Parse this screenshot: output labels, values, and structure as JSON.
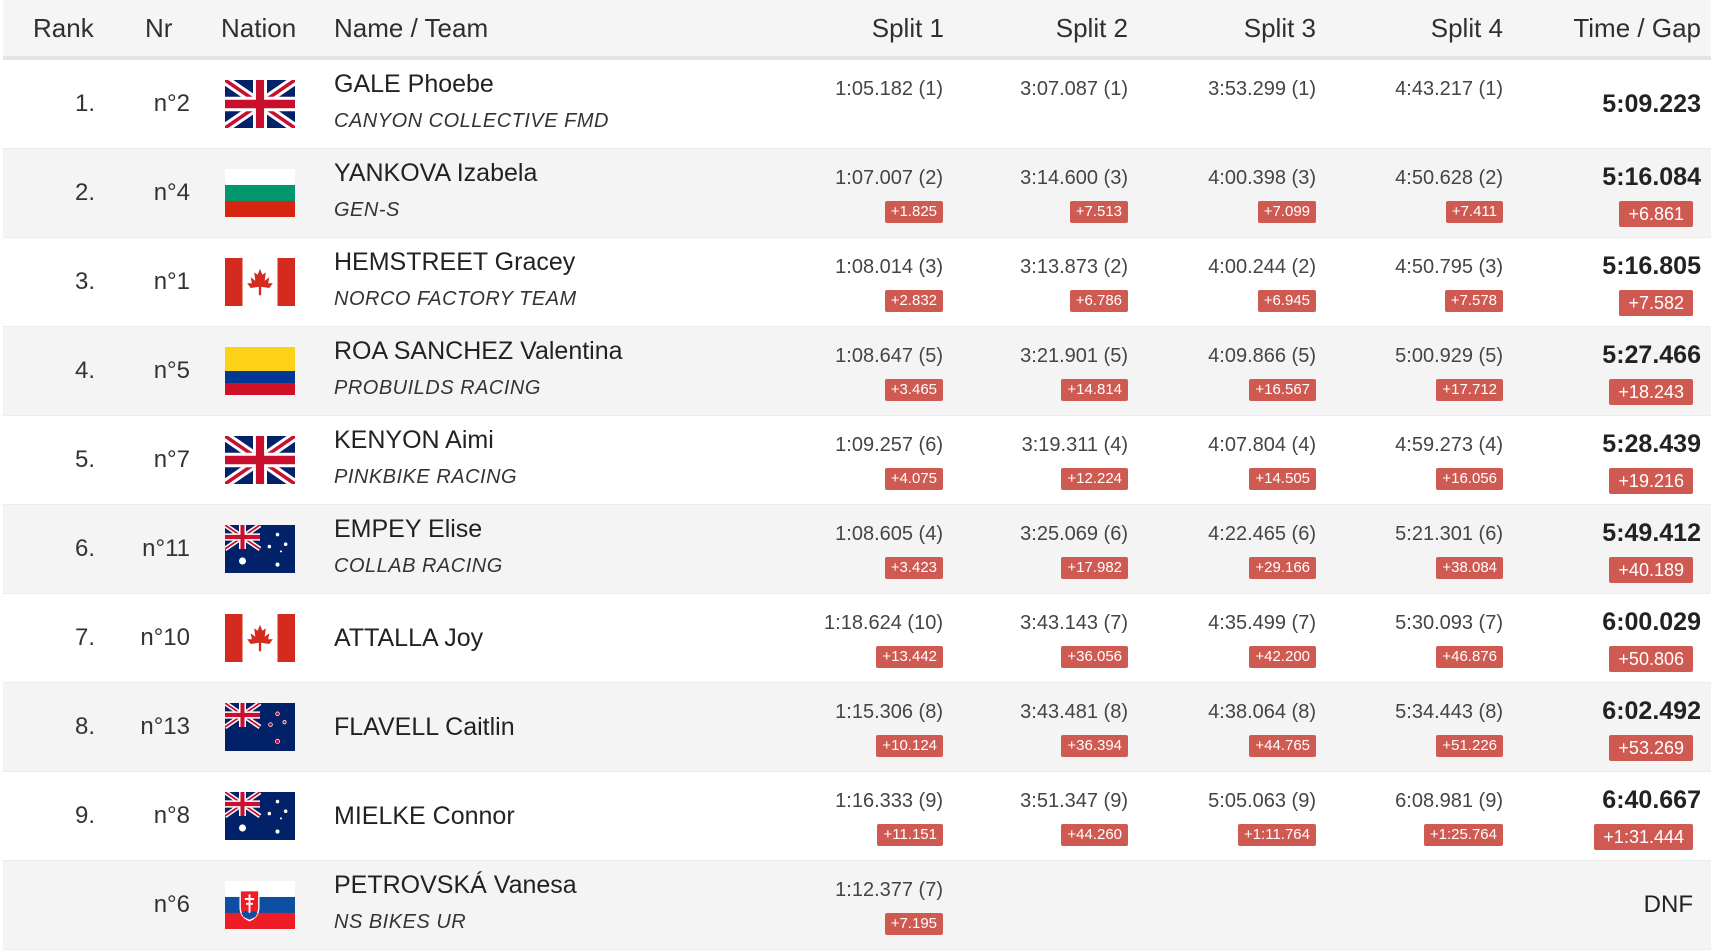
{
  "headers": {
    "rank": "Rank",
    "nr": "Nr",
    "nation": "Nation",
    "name": "Name / Team",
    "split1": "Split 1",
    "split2": "Split 2",
    "split3": "Split 3",
    "split4": "Split 4",
    "time": "Time / Gap"
  },
  "colors": {
    "gap_badge": "#cf5a52",
    "alt_row": "#f4f4f4"
  },
  "rows": [
    {
      "rank": "1.",
      "nr": "n°2",
      "flag": "GBR",
      "name": "GALE Phoebe",
      "team": "CANYON COLLECTIVE FMD",
      "splits": [
        {
          "time": "1:05.182 (1)",
          "gap": ""
        },
        {
          "time": "3:07.087 (1)",
          "gap": ""
        },
        {
          "time": "3:53.299 (1)",
          "gap": ""
        },
        {
          "time": "4:43.217 (1)",
          "gap": ""
        }
      ],
      "total": "5:09.223",
      "total_gap": ""
    },
    {
      "rank": "2.",
      "nr": "n°4",
      "flag": "BUL",
      "name": "YANKOVA Izabela",
      "team": "GEN-S",
      "splits": [
        {
          "time": "1:07.007 (2)",
          "gap": "+1.825"
        },
        {
          "time": "3:14.600 (3)",
          "gap": "+7.513"
        },
        {
          "time": "4:00.398 (3)",
          "gap": "+7.099"
        },
        {
          "time": "4:50.628 (2)",
          "gap": "+7.411"
        }
      ],
      "total": "5:16.084",
      "total_gap": "+6.861"
    },
    {
      "rank": "3.",
      "nr": "n°1",
      "flag": "CAN",
      "name": "HEMSTREET Gracey",
      "team": "NORCO FACTORY TEAM",
      "splits": [
        {
          "time": "1:08.014 (3)",
          "gap": "+2.832"
        },
        {
          "time": "3:13.873 (2)",
          "gap": "+6.786"
        },
        {
          "time": "4:00.244 (2)",
          "gap": "+6.945"
        },
        {
          "time": "4:50.795 (3)",
          "gap": "+7.578"
        }
      ],
      "total": "5:16.805",
      "total_gap": "+7.582"
    },
    {
      "rank": "4.",
      "nr": "n°5",
      "flag": "COL",
      "name": "ROA SANCHEZ Valentina",
      "team": "PROBUILDS RACING",
      "splits": [
        {
          "time": "1:08.647 (5)",
          "gap": "+3.465"
        },
        {
          "time": "3:21.901 (5)",
          "gap": "+14.814"
        },
        {
          "time": "4:09.866 (5)",
          "gap": "+16.567"
        },
        {
          "time": "5:00.929 (5)",
          "gap": "+17.712"
        }
      ],
      "total": "5:27.466",
      "total_gap": "+18.243"
    },
    {
      "rank": "5.",
      "nr": "n°7",
      "flag": "GBR",
      "name": "KENYON Aimi",
      "team": "PINKBIKE RACING",
      "splits": [
        {
          "time": "1:09.257 (6)",
          "gap": "+4.075"
        },
        {
          "time": "3:19.311 (4)",
          "gap": "+12.224"
        },
        {
          "time": "4:07.804 (4)",
          "gap": "+14.505"
        },
        {
          "time": "4:59.273 (4)",
          "gap": "+16.056"
        }
      ],
      "total": "5:28.439",
      "total_gap": "+19.216"
    },
    {
      "rank": "6.",
      "nr": "n°11",
      "flag": "AUS",
      "name": "EMPEY Elise",
      "team": "COLLAB RACING",
      "splits": [
        {
          "time": "1:08.605 (4)",
          "gap": "+3.423"
        },
        {
          "time": "3:25.069 (6)",
          "gap": "+17.982"
        },
        {
          "time": "4:22.465 (6)",
          "gap": "+29.166"
        },
        {
          "time": "5:21.301 (6)",
          "gap": "+38.084"
        }
      ],
      "total": "5:49.412",
      "total_gap": "+40.189"
    },
    {
      "rank": "7.",
      "nr": "n°10",
      "flag": "CAN",
      "name": "ATTALLA Joy",
      "team": "",
      "splits": [
        {
          "time": "1:18.624 (10)",
          "gap": "+13.442"
        },
        {
          "time": "3:43.143 (7)",
          "gap": "+36.056"
        },
        {
          "time": "4:35.499 (7)",
          "gap": "+42.200"
        },
        {
          "time": "5:30.093 (7)",
          "gap": "+46.876"
        }
      ],
      "total": "6:00.029",
      "total_gap": "+50.806"
    },
    {
      "rank": "8.",
      "nr": "n°13",
      "flag": "NZL",
      "name": "FLAVELL Caitlin",
      "team": "",
      "splits": [
        {
          "time": "1:15.306 (8)",
          "gap": "+10.124"
        },
        {
          "time": "3:43.481 (8)",
          "gap": "+36.394"
        },
        {
          "time": "4:38.064 (8)",
          "gap": "+44.765"
        },
        {
          "time": "5:34.443 (8)",
          "gap": "+51.226"
        }
      ],
      "total": "6:02.492",
      "total_gap": "+53.269"
    },
    {
      "rank": "9.",
      "nr": "n°8",
      "flag": "AUS",
      "name": "MIELKE Connor",
      "team": "",
      "splits": [
        {
          "time": "1:16.333 (9)",
          "gap": "+11.151"
        },
        {
          "time": "3:51.347 (9)",
          "gap": "+44.260"
        },
        {
          "time": "5:05.063 (9)",
          "gap": "+1:11.764"
        },
        {
          "time": "6:08.981 (9)",
          "gap": "+1:25.764"
        }
      ],
      "total": "6:40.667",
      "total_gap": "+1:31.444"
    },
    {
      "rank": "",
      "nr": "n°6",
      "flag": "SVK",
      "name": "PETROVSKÁ Vanesa",
      "team": "NS BIKES UR",
      "splits": [
        {
          "time": "1:12.377 (7)",
          "gap": "+7.195"
        },
        {
          "time": "",
          "gap": ""
        },
        {
          "time": "",
          "gap": ""
        },
        {
          "time": "",
          "gap": ""
        }
      ],
      "total": "",
      "total_gap": "",
      "status": "DNF"
    }
  ]
}
